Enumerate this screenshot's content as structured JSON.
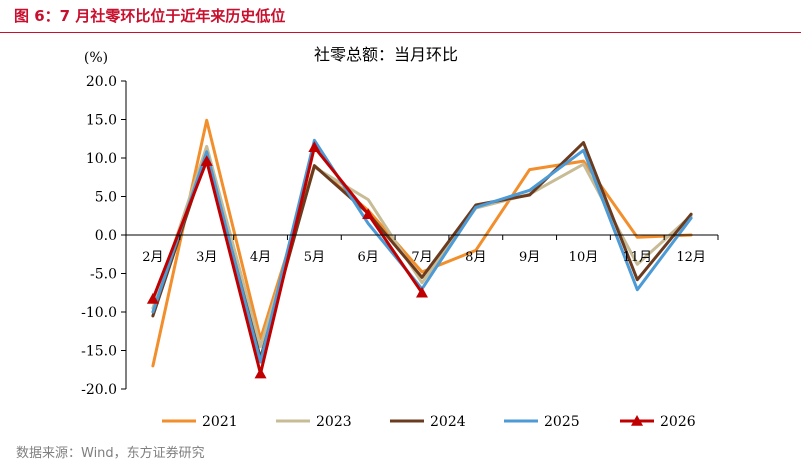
{
  "figure": {
    "caption": "图 6：7 月社零环比位于近年来历史低位",
    "source": "数据来源：Wind，东方证券研究"
  },
  "chart_data": {
    "type": "line",
    "title": "社零总额：当月环比",
    "ylabel": "(%)",
    "ylim": [
      -20,
      20
    ],
    "yticks": [
      -20,
      -15,
      -10,
      -5,
      0,
      5,
      10,
      15,
      20
    ],
    "ytick_labels": [
      "-20.0",
      "-15.0",
      "-10.0",
      "-5.0",
      "0.0",
      "5.0",
      "10.0",
      "15.0",
      "20.0"
    ],
    "categories": [
      "2月",
      "3月",
      "4月",
      "5月",
      "6月",
      "7月",
      "8月",
      "9月",
      "10月",
      "11月",
      "12月"
    ],
    "grid": false,
    "legend_position": "bottom",
    "series": [
      {
        "name": "2021",
        "color": "#f28e2b",
        "marker": "none",
        "values": [
          -17.0,
          14.9,
          -13.5,
          9.0,
          3.2,
          -4.8,
          -2.0,
          8.5,
          9.6,
          -0.3,
          0.0
        ]
      },
      {
        "name": "2023",
        "color": "#c7bc96",
        "marker": "none",
        "values": [
          -9.5,
          11.5,
          -14.5,
          8.8,
          4.6,
          -6.2,
          3.5,
          5.3,
          9.2,
          -3.8,
          2.5
        ]
      },
      {
        "name": "2024",
        "color": "#6b3b1f",
        "marker": "none",
        "values": [
          -10.5,
          10.3,
          -16.0,
          9.0,
          2.8,
          -5.5,
          3.9,
          5.2,
          12.0,
          -5.8,
          2.7
        ]
      },
      {
        "name": "2025",
        "color": "#4c9ad6",
        "marker": "none",
        "values": [
          -10.0,
          10.8,
          -16.5,
          12.3,
          1.5,
          -7.0,
          3.6,
          5.8,
          11.0,
          -7.1,
          2.2
        ]
      },
      {
        "name": "2026",
        "color": "#c00000",
        "marker": "triangle",
        "values": [
          -8.3,
          9.6,
          -18.0,
          11.4,
          2.7,
          -7.5,
          null,
          null,
          null,
          null,
          null
        ]
      }
    ]
  }
}
